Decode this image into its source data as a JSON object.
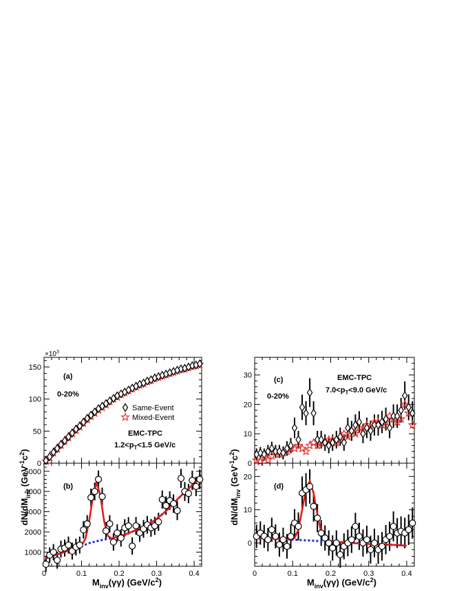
{
  "figure": {
    "x_axis_label_main": "M",
    "x_axis_label_sub": "inv",
    "x_axis_label_rest": "(γγ) (GeV/c",
    "x_axis_label_sup": "2",
    "x_axis_label_end": ")",
    "y_axis_label_main": "dN/dM",
    "y_axis_label_sub": "inv",
    "y_axis_label_unit_open": " (GeV",
    "y_axis_label_sup1": "-1",
    "y_axis_label_mid": "c",
    "y_axis_label_sup2": "2",
    "y_axis_label_close": ")"
  },
  "chart_data": [
    {
      "panel": "(a)",
      "type": "scatter",
      "centrality": "0-20%",
      "detector": "EMC-TPC",
      "pt_label_main": "1.2<p",
      "pt_label_sub": "T",
      "pt_label_rest": "<1.5 GeV/c",
      "multiplier": "×10",
      "multiplier_exp": "3",
      "xlim": [
        0,
        0.42
      ],
      "ylim": [
        0,
        165
      ],
      "yticks": [
        0,
        50,
        100,
        150
      ],
      "legend": [
        "Same-Event",
        "Mixed-Event"
      ],
      "series": [
        {
          "name": "Same-Event",
          "marker": "diamond",
          "x": [
            0.005,
            0.015,
            0.025,
            0.035,
            0.045,
            0.055,
            0.065,
            0.075,
            0.085,
            0.095,
            0.105,
            0.115,
            0.125,
            0.135,
            0.145,
            0.155,
            0.165,
            0.175,
            0.185,
            0.195,
            0.205,
            0.215,
            0.225,
            0.235,
            0.245,
            0.255,
            0.265,
            0.275,
            0.285,
            0.295,
            0.305,
            0.315,
            0.325,
            0.335,
            0.345,
            0.355,
            0.365,
            0.375,
            0.385,
            0.395,
            0.405,
            0.415
          ],
          "y": [
            4,
            10,
            17,
            23,
            29,
            35,
            41,
            47,
            53,
            58,
            64,
            70,
            75,
            80,
            85,
            89,
            93,
            97,
            101,
            105,
            108,
            111,
            114,
            117,
            120,
            123,
            125,
            128,
            130,
            133,
            135,
            137,
            139,
            141,
            143,
            145,
            147,
            148,
            150,
            152,
            153,
            155
          ]
        },
        {
          "name": "Mixed-Event",
          "marker": "star",
          "x": [
            0.005,
            0.015,
            0.025,
            0.035,
            0.045,
            0.055,
            0.065,
            0.075,
            0.085,
            0.095,
            0.105,
            0.115,
            0.125,
            0.135,
            0.145,
            0.155,
            0.165,
            0.175,
            0.185,
            0.195,
            0.205,
            0.215,
            0.225,
            0.235,
            0.245,
            0.255,
            0.265,
            0.275,
            0.285,
            0.295,
            0.305,
            0.315,
            0.325,
            0.335,
            0.345,
            0.355,
            0.365,
            0.375,
            0.385,
            0.395,
            0.405,
            0.415
          ],
          "y": [
            3,
            9,
            16,
            22,
            28,
            34,
            40,
            46,
            51,
            57,
            62,
            68,
            73,
            78,
            83,
            87,
            91,
            96,
            100,
            103,
            107,
            110,
            113,
            116,
            119,
            122,
            124,
            127,
            129,
            132,
            134,
            136,
            138,
            140,
            142,
            144,
            146,
            147,
            149,
            151,
            152,
            154
          ]
        }
      ]
    },
    {
      "panel": "(b)",
      "type": "scatter",
      "xlim": [
        0,
        0.42
      ],
      "ylim": [
        300,
        5400
      ],
      "yticks": [
        1000,
        2000,
        3000,
        4000,
        5000
      ],
      "xticks": [
        0,
        0.1,
        0.2,
        0.3,
        0.4
      ],
      "x": [
        0.005,
        0.015,
        0.025,
        0.035,
        0.045,
        0.055,
        0.065,
        0.075,
        0.085,
        0.095,
        0.105,
        0.115,
        0.125,
        0.135,
        0.145,
        0.155,
        0.165,
        0.175,
        0.185,
        0.195,
        0.205,
        0.215,
        0.225,
        0.235,
        0.245,
        0.255,
        0.265,
        0.275,
        0.285,
        0.295,
        0.305,
        0.315,
        0.325,
        0.335,
        0.345,
        0.355,
        0.365,
        0.375,
        0.385,
        0.395,
        0.405,
        0.415
      ],
      "y": [
        400,
        850,
        1000,
        600,
        1150,
        1200,
        1350,
        1050,
        1250,
        1350,
        2100,
        2400,
        3700,
        4000,
        4600,
        3750,
        2050,
        2400,
        1500,
        1950,
        1700,
        2200,
        2300,
        1300,
        2300,
        1950,
        2150,
        2350,
        2200,
        2300,
        2500,
        3600,
        3300,
        3550,
        3400,
        3050,
        4650,
        4000,
        3900,
        4550,
        4250,
        4600
      ],
      "err": [
        380,
        380,
        400,
        420,
        420,
        420,
        420,
        420,
        420,
        420,
        430,
        430,
        440,
        440,
        440,
        440,
        430,
        430,
        430,
        430,
        430,
        430,
        430,
        430,
        440,
        440,
        440,
        440,
        440,
        450,
        450,
        450,
        460,
        460,
        460,
        470,
        470,
        470,
        480,
        480,
        480,
        490
      ],
      "fit_total": [
        [
          0.005,
          680
        ],
        [
          0.02,
          800
        ],
        [
          0.04,
          920
        ],
        [
          0.06,
          1050
        ],
        [
          0.08,
          1180
        ],
        [
          0.1,
          1340
        ],
        [
          0.11,
          1650
        ],
        [
          0.12,
          2500
        ],
        [
          0.13,
          3700
        ],
        [
          0.14,
          4450
        ],
        [
          0.15,
          3800
        ],
        [
          0.16,
          2550
        ],
        [
          0.17,
          1800
        ],
        [
          0.18,
          1680
        ],
        [
          0.2,
          1780
        ],
        [
          0.22,
          1900
        ],
        [
          0.24,
          2050
        ],
        [
          0.26,
          2200
        ],
        [
          0.28,
          2400
        ],
        [
          0.3,
          2650
        ],
        [
          0.32,
          2950
        ],
        [
          0.34,
          3300
        ],
        [
          0.36,
          3700
        ],
        [
          0.38,
          4050
        ],
        [
          0.4,
          4400
        ],
        [
          0.415,
          4650
        ]
      ],
      "fit_background": [
        [
          0.005,
          680
        ],
        [
          0.02,
          800
        ],
        [
          0.04,
          920
        ],
        [
          0.06,
          1050
        ],
        [
          0.08,
          1180
        ],
        [
          0.1,
          1300
        ],
        [
          0.12,
          1440
        ],
        [
          0.14,
          1540
        ],
        [
          0.16,
          1620
        ],
        [
          0.18,
          1690
        ],
        [
          0.2,
          1780
        ],
        [
          0.22,
          1900
        ],
        [
          0.24,
          2050
        ],
        [
          0.26,
          2200
        ],
        [
          0.28,
          2400
        ],
        [
          0.3,
          2650
        ],
        [
          0.32,
          2950
        ],
        [
          0.34,
          3300
        ],
        [
          0.36,
          3700
        ],
        [
          0.38,
          4050
        ],
        [
          0.4,
          4400
        ],
        [
          0.415,
          4650
        ]
      ]
    },
    {
      "panel": "(c)",
      "type": "scatter",
      "centrality": "0-20%",
      "detector": "EMC-TPC",
      "pt_label_main": "7.0<p",
      "pt_label_sub": "T",
      "pt_label_rest": "<9.0 GeV/c",
      "xlim": [
        0,
        0.42
      ],
      "ylim": [
        0,
        36
      ],
      "yticks": [
        0,
        10,
        20,
        30
      ],
      "series": [
        {
          "name": "Same-Event",
          "marker": "diamond",
          "x": [
            0.005,
            0.015,
            0.025,
            0.035,
            0.045,
            0.055,
            0.065,
            0.075,
            0.085,
            0.095,
            0.105,
            0.115,
            0.125,
            0.135,
            0.145,
            0.155,
            0.165,
            0.175,
            0.185,
            0.195,
            0.205,
            0.215,
            0.225,
            0.235,
            0.245,
            0.255,
            0.265,
            0.275,
            0.285,
            0.295,
            0.305,
            0.315,
            0.325,
            0.335,
            0.345,
            0.355,
            0.365,
            0.375,
            0.385,
            0.395,
            0.405,
            0.415
          ],
          "y": [
            3,
            3.5,
            3,
            4,
            5,
            4,
            4,
            3.5,
            5,
            6,
            12,
            8,
            19,
            17,
            24,
            17,
            8,
            8,
            7,
            6,
            7,
            8,
            9,
            7,
            12,
            11,
            13,
            14,
            10,
            12,
            11,
            13,
            13,
            14,
            15,
            12,
            16,
            16,
            18,
            23,
            19,
            17
          ],
          "err": [
            2,
            2,
            2,
            2.2,
            2.3,
            2.2,
            2.2,
            2.2,
            2.5,
            2.6,
            3.5,
            3,
            4.3,
            4.1,
            4.9,
            4.1,
            3,
            3,
            2.8,
            2.6,
            2.8,
            3,
            3.1,
            2.8,
            3.5,
            3.4,
            3.6,
            3.7,
            3.2,
            3.5,
            3.4,
            3.6,
            3.6,
            3.8,
            3.9,
            3.5,
            4,
            4,
            4.2,
            4.8,
            4.4,
            4.1
          ]
        },
        {
          "name": "Mixed-Event",
          "marker": "star",
          "x": [
            0.005,
            0.015,
            0.025,
            0.035,
            0.045,
            0.055,
            0.065,
            0.075,
            0.085,
            0.095,
            0.105,
            0.115,
            0.125,
            0.135,
            0.145,
            0.155,
            0.165,
            0.175,
            0.185,
            0.195,
            0.205,
            0.215,
            0.225,
            0.235,
            0.245,
            0.255,
            0.265,
            0.275,
            0.285,
            0.295,
            0.305,
            0.315,
            0.325,
            0.335,
            0.345,
            0.355,
            0.365,
            0.375,
            0.385,
            0.395,
            0.405,
            0.415
          ],
          "y": [
            1,
            0.5,
            2,
            1,
            2.5,
            4,
            3,
            3.5,
            4,
            5,
            5,
            6,
            5,
            4,
            6,
            7,
            6,
            7,
            7,
            8,
            8,
            7,
            8,
            10,
            9,
            11,
            10,
            12,
            11,
            13,
            12,
            14,
            14,
            13,
            14,
            16,
            15,
            14,
            15,
            20,
            17,
            13
          ]
        }
      ]
    },
    {
      "panel": "(d)",
      "type": "scatter",
      "xlim": [
        0,
        0.42
      ],
      "ylim": [
        -7,
        24
      ],
      "yticks": [
        0,
        10,
        20
      ],
      "xticks": [
        0,
        0.1,
        0.2,
        0.3,
        0.4
      ],
      "x": [
        0.005,
        0.015,
        0.025,
        0.035,
        0.045,
        0.055,
        0.065,
        0.075,
        0.085,
        0.095,
        0.105,
        0.115,
        0.125,
        0.135,
        0.145,
        0.155,
        0.165,
        0.175,
        0.185,
        0.195,
        0.205,
        0.215,
        0.225,
        0.235,
        0.245,
        0.255,
        0.265,
        0.275,
        0.285,
        0.295,
        0.305,
        0.315,
        0.325,
        0.335,
        0.345,
        0.355,
        0.365,
        0.375,
        0.385,
        0.395,
        0.405,
        0.415
      ],
      "y": [
        2,
        3,
        2,
        1,
        4,
        2,
        -0.5,
        1,
        -1,
        2,
        6,
        5,
        15,
        16,
        17,
        11,
        7.5,
        3,
        1.5,
        0,
        -1.5,
        0,
        -3.5,
        -1,
        0,
        1,
        5,
        2,
        0,
        1,
        -2,
        0,
        -2,
        -1,
        1,
        2,
        5,
        3,
        3.5,
        3,
        4,
        6
      ],
      "err": [
        3.5,
        3.5,
        3.5,
        3.5,
        3.6,
        3.6,
        3.6,
        3.6,
        3.7,
        3.7,
        4.2,
        4.2,
        5,
        5,
        5.2,
        4.6,
        4.2,
        3.9,
        3.8,
        3.8,
        3.8,
        3.8,
        3.9,
        3.9,
        4,
        4,
        4.1,
        4.1,
        4.1,
        4.2,
        4.2,
        4.3,
        4.3,
        4.3,
        4.4,
        4.4,
        4.5,
        4.5,
        4.5,
        4.6,
        4.6,
        4.7
      ],
      "fit_total": [
        [
          0.01,
          1.5
        ],
        [
          0.05,
          1.3
        ],
        [
          0.09,
          1.0
        ],
        [
          0.105,
          1.5
        ],
        [
          0.115,
          4
        ],
        [
          0.125,
          10
        ],
        [
          0.135,
          16
        ],
        [
          0.145,
          18.6
        ],
        [
          0.155,
          15
        ],
        [
          0.165,
          8.5
        ],
        [
          0.175,
          3.2
        ],
        [
          0.185,
          1.0
        ],
        [
          0.2,
          0.5
        ],
        [
          0.25,
          0.0
        ],
        [
          0.3,
          -0.3
        ],
        [
          0.35,
          -0.5
        ],
        [
          0.4,
          -0.8
        ]
      ],
      "fit_background": [
        [
          0.01,
          1.5
        ],
        [
          0.05,
          1.3
        ],
        [
          0.1,
          1.0
        ],
        [
          0.15,
          0.7
        ],
        [
          0.2,
          0.4
        ],
        [
          0.25,
          0.1
        ],
        [
          0.3,
          -0.2
        ],
        [
          0.35,
          -0.5
        ],
        [
          0.4,
          -0.8
        ]
      ]
    }
  ]
}
